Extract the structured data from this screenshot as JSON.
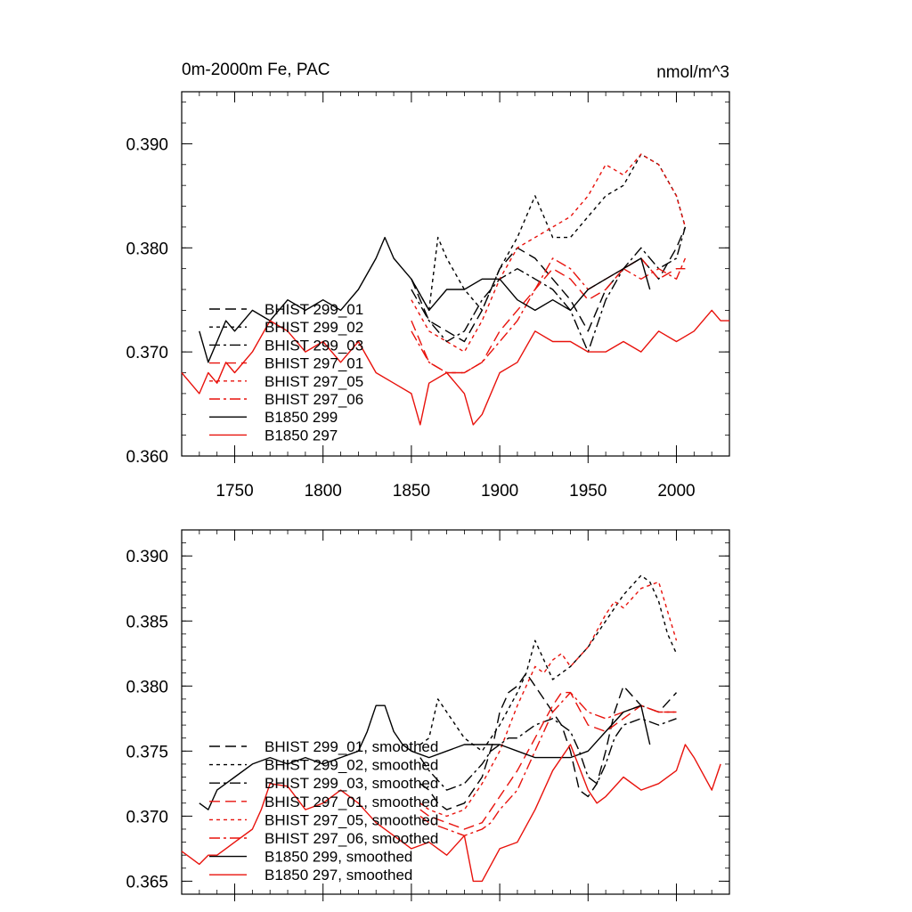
{
  "chart_data": [
    {
      "type": "line",
      "title": "0m-2000m Fe, PAC",
      "units": "nmol/m^3",
      "xlabel": "",
      "ylabel": "",
      "xlim": [
        1720,
        2030
      ],
      "ylim": [
        0.36,
        0.395
      ],
      "xticks": [
        1750,
        1800,
        1850,
        1900,
        1950,
        2000
      ],
      "xtick_labels": [
        "1750",
        "1800",
        "1850",
        "1900",
        "1950",
        "2000"
      ],
      "yticks": [
        0.36,
        0.37,
        0.38,
        0.39
      ],
      "ytick_labels": [
        "0.360",
        "0.370",
        "0.380",
        "0.390"
      ],
      "legend_location": "lower-left",
      "grid": false,
      "series": [
        {
          "name": "BHIST 299_01",
          "color": "#000000",
          "dash": "12,6",
          "x": [
            1850,
            1860,
            1870,
            1880,
            1890,
            1900,
            1910,
            1920,
            1930,
            1940,
            1950,
            1960,
            1970,
            1980,
            1990,
            2000,
            2005
          ],
          "y": [
            0.377,
            0.373,
            0.372,
            0.371,
            0.374,
            0.378,
            0.38,
            0.379,
            0.377,
            0.375,
            0.372,
            0.376,
            0.378,
            0.379,
            0.377,
            0.38,
            0.382
          ]
        },
        {
          "name": "BHIST 299_02",
          "color": "#000000",
          "dash": "4,4",
          "x": [
            1850,
            1860,
            1865,
            1870,
            1880,
            1890,
            1900,
            1910,
            1920,
            1930,
            1940,
            1950,
            1960,
            1970,
            1980,
            1990,
            2000,
            2005
          ],
          "y": [
            0.377,
            0.374,
            0.381,
            0.379,
            0.376,
            0.374,
            0.378,
            0.381,
            0.385,
            0.381,
            0.381,
            0.383,
            0.385,
            0.386,
            0.389,
            0.388,
            0.385,
            0.382
          ]
        },
        {
          "name": "BHIST 299_03",
          "color": "#000000",
          "dash": "12,4,3,4",
          "x": [
            1850,
            1860,
            1870,
            1880,
            1890,
            1900,
            1910,
            1920,
            1930,
            1940,
            1950,
            1960,
            1970,
            1980,
            1990,
            2000,
            2005
          ],
          "y": [
            0.376,
            0.373,
            0.371,
            0.372,
            0.375,
            0.377,
            0.378,
            0.377,
            0.376,
            0.374,
            0.37,
            0.375,
            0.378,
            0.38,
            0.378,
            0.379,
            0.382
          ]
        },
        {
          "name": "BHIST 297_01",
          "color": "#e8120c",
          "dash": "12,6",
          "x": [
            1850,
            1860,
            1870,
            1880,
            1890,
            1900,
            1910,
            1920,
            1930,
            1940,
            1950,
            1960,
            1970,
            1980,
            1990,
            2000,
            2005
          ],
          "y": [
            0.373,
            0.369,
            0.368,
            0.368,
            0.369,
            0.372,
            0.374,
            0.376,
            0.378,
            0.377,
            0.375,
            0.376,
            0.378,
            0.379,
            0.377,
            0.378,
            0.378
          ]
        },
        {
          "name": "BHIST 297_05",
          "color": "#e8120c",
          "dash": "4,4",
          "x": [
            1850,
            1860,
            1870,
            1880,
            1890,
            1900,
            1910,
            1920,
            1930,
            1940,
            1950,
            1960,
            1970,
            1980,
            1990,
            2000,
            2005
          ],
          "y": [
            0.375,
            0.372,
            0.371,
            0.37,
            0.373,
            0.377,
            0.38,
            0.381,
            0.382,
            0.383,
            0.385,
            0.388,
            0.387,
            0.389,
            0.388,
            0.385,
            0.382
          ]
        },
        {
          "name": "BHIST 297_06",
          "color": "#e8120c",
          "dash": "12,4,3,4",
          "x": [
            1850,
            1860,
            1870,
            1880,
            1890,
            1900,
            1910,
            1920,
            1930,
            1940,
            1950,
            1960,
            1970,
            1980,
            1990,
            2000,
            2005
          ],
          "y": [
            0.372,
            0.369,
            0.368,
            0.368,
            0.369,
            0.371,
            0.373,
            0.376,
            0.379,
            0.378,
            0.376,
            0.377,
            0.378,
            0.377,
            0.378,
            0.377,
            0.379
          ]
        },
        {
          "name": "B1850 299",
          "color": "#000000",
          "dash": "",
          "x": [
            1730,
            1735,
            1740,
            1745,
            1750,
            1760,
            1770,
            1780,
            1790,
            1800,
            1810,
            1820,
            1830,
            1835,
            1840,
            1845,
            1850,
            1860,
            1870,
            1880,
            1890,
            1900,
            1910,
            1920,
            1930,
            1940,
            1950,
            1960,
            1970,
            1980,
            1985
          ],
          "y": [
            0.372,
            0.369,
            0.371,
            0.373,
            0.372,
            0.374,
            0.373,
            0.375,
            0.374,
            0.375,
            0.374,
            0.376,
            0.379,
            0.381,
            0.379,
            0.378,
            0.377,
            0.374,
            0.376,
            0.376,
            0.377,
            0.377,
            0.375,
            0.374,
            0.375,
            0.374,
            0.376,
            0.377,
            0.378,
            0.379,
            0.376
          ]
        },
        {
          "name": "B1850 297",
          "color": "#e8120c",
          "dash": "",
          "x": [
            1720,
            1725,
            1730,
            1735,
            1740,
            1745,
            1750,
            1760,
            1770,
            1780,
            1790,
            1800,
            1810,
            1820,
            1830,
            1840,
            1850,
            1855,
            1860,
            1870,
            1880,
            1885,
            1890,
            1900,
            1910,
            1920,
            1930,
            1940,
            1950,
            1960,
            1970,
            1980,
            1990,
            2000,
            2010,
            2020,
            2025,
            2030
          ],
          "y": [
            0.368,
            0.367,
            0.366,
            0.368,
            0.367,
            0.369,
            0.368,
            0.37,
            0.373,
            0.372,
            0.37,
            0.371,
            0.369,
            0.371,
            0.368,
            0.367,
            0.366,
            0.363,
            0.367,
            0.368,
            0.366,
            0.363,
            0.364,
            0.368,
            0.369,
            0.372,
            0.371,
            0.371,
            0.37,
            0.37,
            0.371,
            0.37,
            0.372,
            0.371,
            0.372,
            0.374,
            0.373,
            0.373
          ]
        }
      ]
    },
    {
      "type": "line",
      "title": "",
      "xlabel": "",
      "ylabel": "",
      "xlim": [
        1720,
        2030
      ],
      "ylim": [
        0.364,
        0.392
      ],
      "xticks": [
        1750,
        1800,
        1850,
        1900,
        1950,
        2000
      ],
      "yticks": [
        0.365,
        0.37,
        0.375,
        0.38,
        0.385,
        0.39
      ],
      "ytick_labels": [
        "0.365",
        "0.370",
        "0.375",
        "0.380",
        "0.385",
        "0.390"
      ],
      "legend_location": "lower-left",
      "grid": false,
      "series": [
        {
          "name": "BHIST 299_01, smoothed",
          "color": "#000000",
          "dash": "12,6",
          "x": [
            1855,
            1860,
            1865,
            1870,
            1880,
            1890,
            1897,
            1900,
            1905,
            1910,
            1915,
            1920,
            1925,
            1930,
            1935,
            1940,
            1945,
            1950,
            1955,
            1960,
            1965,
            1970,
            1980,
            1990,
            2000
          ],
          "y": [
            0.3725,
            0.372,
            0.371,
            0.3705,
            0.371,
            0.373,
            0.376,
            0.378,
            0.3795,
            0.38,
            0.381,
            0.38,
            0.379,
            0.378,
            0.377,
            0.375,
            0.372,
            0.3715,
            0.3725,
            0.375,
            0.378,
            0.38,
            0.3785,
            0.378,
            0.3795
          ]
        },
        {
          "name": "BHIST 299_02, smoothed",
          "color": "#000000",
          "dash": "4,4",
          "x": [
            1855,
            1860,
            1865,
            1870,
            1875,
            1880,
            1890,
            1900,
            1910,
            1915,
            1920,
            1925,
            1930,
            1940,
            1950,
            1960,
            1970,
            1980,
            1985,
            1990,
            1995,
            2000
          ],
          "y": [
            0.3755,
            0.376,
            0.379,
            0.378,
            0.377,
            0.376,
            0.375,
            0.377,
            0.3795,
            0.381,
            0.3835,
            0.382,
            0.3805,
            0.3815,
            0.383,
            0.385,
            0.387,
            0.3885,
            0.388,
            0.3865,
            0.384,
            0.3825
          ]
        },
        {
          "name": "BHIST 299_03, smoothed",
          "color": "#000000",
          "dash": "12,4,3,4",
          "x": [
            1855,
            1860,
            1870,
            1880,
            1890,
            1895,
            1900,
            1905,
            1910,
            1920,
            1930,
            1940,
            1945,
            1950,
            1955,
            1960,
            1965,
            1970,
            1980,
            1990,
            2000
          ],
          "y": [
            0.3745,
            0.3735,
            0.372,
            0.3725,
            0.374,
            0.375,
            0.3755,
            0.376,
            0.376,
            0.377,
            0.3775,
            0.3765,
            0.375,
            0.373,
            0.3725,
            0.374,
            0.376,
            0.377,
            0.3775,
            0.377,
            0.3775
          ]
        },
        {
          "name": "BHIST 297_01, smoothed",
          "color": "#e8120c",
          "dash": "12,6",
          "x": [
            1855,
            1860,
            1870,
            1880,
            1890,
            1900,
            1910,
            1920,
            1930,
            1935,
            1940,
            1950,
            1960,
            1970,
            1980,
            1990,
            2000
          ],
          "y": [
            0.3705,
            0.37,
            0.3695,
            0.369,
            0.3695,
            0.3715,
            0.3735,
            0.376,
            0.3785,
            0.3795,
            0.3795,
            0.377,
            0.3765,
            0.3775,
            0.3785,
            0.378,
            0.378
          ]
        },
        {
          "name": "BHIST 297_05, smoothed",
          "color": "#e8120c",
          "dash": "4,4",
          "x": [
            1855,
            1860,
            1870,
            1880,
            1890,
            1900,
            1910,
            1920,
            1925,
            1930,
            1935,
            1940,
            1950,
            1960,
            1965,
            1970,
            1980,
            1990,
            2000
          ],
          "y": [
            0.371,
            0.3705,
            0.37,
            0.3705,
            0.3725,
            0.375,
            0.3785,
            0.3815,
            0.381,
            0.382,
            0.3825,
            0.3815,
            0.383,
            0.3855,
            0.3865,
            0.386,
            0.3875,
            0.388,
            0.3835
          ]
        },
        {
          "name": "BHIST 297_06, smoothed",
          "color": "#e8120c",
          "dash": "12,4,3,4",
          "x": [
            1855,
            1860,
            1870,
            1880,
            1890,
            1895,
            1900,
            1910,
            1920,
            1930,
            1940,
            1950,
            1960,
            1970,
            1980,
            1990,
            2000
          ],
          "y": [
            0.37,
            0.3695,
            0.369,
            0.3685,
            0.369,
            0.3695,
            0.3705,
            0.372,
            0.375,
            0.378,
            0.3795,
            0.378,
            0.3775,
            0.378,
            0.3785,
            0.378,
            0.378
          ]
        },
        {
          "name": "B1850 299, smoothed",
          "color": "#000000",
          "dash": "",
          "x": [
            1730,
            1735,
            1740,
            1750,
            1760,
            1770,
            1780,
            1790,
            1800,
            1810,
            1820,
            1825,
            1830,
            1835,
            1840,
            1845,
            1850,
            1860,
            1870,
            1880,
            1890,
            1900,
            1910,
            1920,
            1930,
            1940,
            1950,
            1960,
            1970,
            1980,
            1985
          ],
          "y": [
            0.371,
            0.3705,
            0.372,
            0.373,
            0.374,
            0.3745,
            0.374,
            0.3745,
            0.374,
            0.3745,
            0.375,
            0.3765,
            0.3785,
            0.3785,
            0.3765,
            0.3755,
            0.375,
            0.3745,
            0.375,
            0.3755,
            0.3755,
            0.3755,
            0.375,
            0.3745,
            0.3745,
            0.3745,
            0.375,
            0.3765,
            0.378,
            0.3785,
            0.3755
          ]
        },
        {
          "name": "B1850 297, smoothed",
          "color": "#e8120c",
          "dash": "",
          "x": [
            1720,
            1725,
            1730,
            1735,
            1740,
            1750,
            1760,
            1765,
            1770,
            1780,
            1790,
            1800,
            1810,
            1820,
            1830,
            1840,
            1850,
            1860,
            1870,
            1880,
            1885,
            1890,
            1900,
            1910,
            1920,
            1930,
            1940,
            1950,
            1955,
            1960,
            1970,
            1980,
            1990,
            2000,
            2005,
            2010,
            2020,
            2025
          ],
          "y": [
            0.3673,
            0.3668,
            0.3663,
            0.367,
            0.367,
            0.368,
            0.369,
            0.3705,
            0.3725,
            0.3723,
            0.3705,
            0.371,
            0.372,
            0.371,
            0.3695,
            0.3685,
            0.3675,
            0.368,
            0.367,
            0.3685,
            0.365,
            0.365,
            0.3675,
            0.368,
            0.3705,
            0.3735,
            0.3755,
            0.372,
            0.371,
            0.3715,
            0.373,
            0.372,
            0.3725,
            0.3735,
            0.3755,
            0.3745,
            0.372,
            0.374
          ]
        }
      ]
    }
  ]
}
